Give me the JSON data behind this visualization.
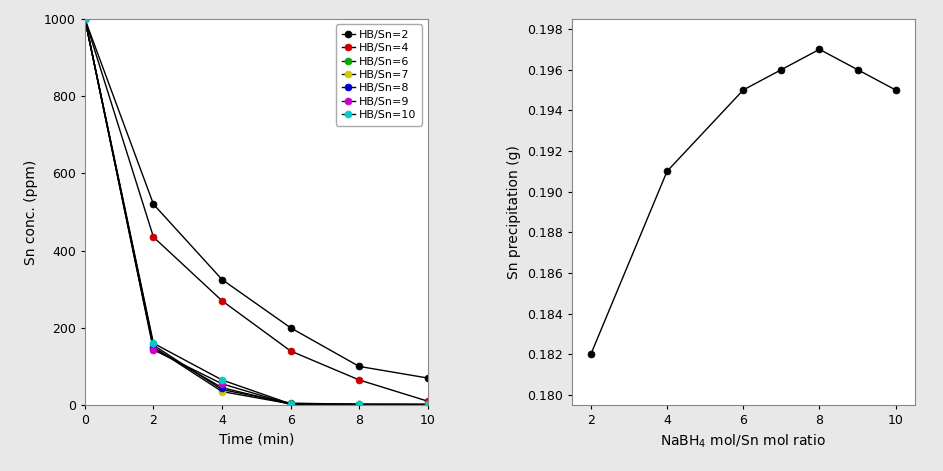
{
  "bg_color": "#e8e8e8",
  "axes_bg": "#ffffff",
  "left": {
    "xlabel": "Time (min)",
    "ylabel": "Sn conc. (ppm)",
    "xlim": [
      0,
      10
    ],
    "ylim": [
      0,
      1000
    ],
    "xticks": [
      0,
      2,
      4,
      6,
      8,
      10
    ],
    "yticks": [
      0,
      200,
      400,
      600,
      800,
      1000
    ],
    "series": [
      {
        "label": "HB/Sn=2",
        "color": "#000000",
        "marker_color": "#000000",
        "x": [
          0,
          2,
          4,
          6,
          8,
          10
        ],
        "y": [
          1000,
          520,
          325,
          200,
          100,
          70
        ]
      },
      {
        "label": "HB/Sn=4",
        "color": "#000000",
        "marker_color": "#cc0000",
        "x": [
          0,
          2,
          4,
          6,
          8,
          10
        ],
        "y": [
          1000,
          435,
          270,
          140,
          65,
          10
        ]
      },
      {
        "label": "HB/Sn=6",
        "color": "#000000",
        "marker_color": "#00aa00",
        "x": [
          0,
          2,
          4,
          6,
          8,
          10
        ],
        "y": [
          1000,
          155,
          40,
          5,
          2,
          2
        ]
      },
      {
        "label": "HB/Sn=7",
        "color": "#000000",
        "marker_color": "#cccc00",
        "x": [
          0,
          2,
          4,
          6,
          8,
          10
        ],
        "y": [
          1000,
          150,
          35,
          3,
          2,
          1
        ]
      },
      {
        "label": "HB/Sn=8",
        "color": "#000000",
        "marker_color": "#0000cc",
        "x": [
          0,
          2,
          4,
          6,
          8,
          10
        ],
        "y": [
          1000,
          148,
          45,
          2,
          1,
          1
        ]
      },
      {
        "label": "HB/Sn=9",
        "color": "#000000",
        "marker_color": "#cc00cc",
        "x": [
          0,
          2,
          4,
          6,
          8,
          10
        ],
        "y": [
          1000,
          143,
          55,
          2,
          1,
          1
        ]
      },
      {
        "label": "HB/Sn=10",
        "color": "#000000",
        "marker_color": "#00cccc",
        "x": [
          0,
          2,
          4,
          6,
          8,
          10
        ],
        "y": [
          1000,
          160,
          65,
          3,
          2,
          2
        ]
      }
    ],
    "legend_fontsize": 8.0
  },
  "right": {
    "xlabel": "NaBH$_4$ mol/Sn mol ratio",
    "ylabel": "Sn precipitation (g)",
    "xlim": [
      1.5,
      10.5
    ],
    "ylim": [
      0.1795,
      0.1985
    ],
    "xticks": [
      2,
      4,
      6,
      8,
      10
    ],
    "yticks": [
      0.18,
      0.182,
      0.184,
      0.186,
      0.188,
      0.19,
      0.192,
      0.194,
      0.196,
      0.198
    ],
    "x": [
      2,
      4,
      6,
      7,
      8,
      9,
      10
    ],
    "y": [
      0.182,
      0.191,
      0.195,
      0.196,
      0.197,
      0.196,
      0.195
    ],
    "color": "#000000",
    "marker_color": "#000000"
  }
}
